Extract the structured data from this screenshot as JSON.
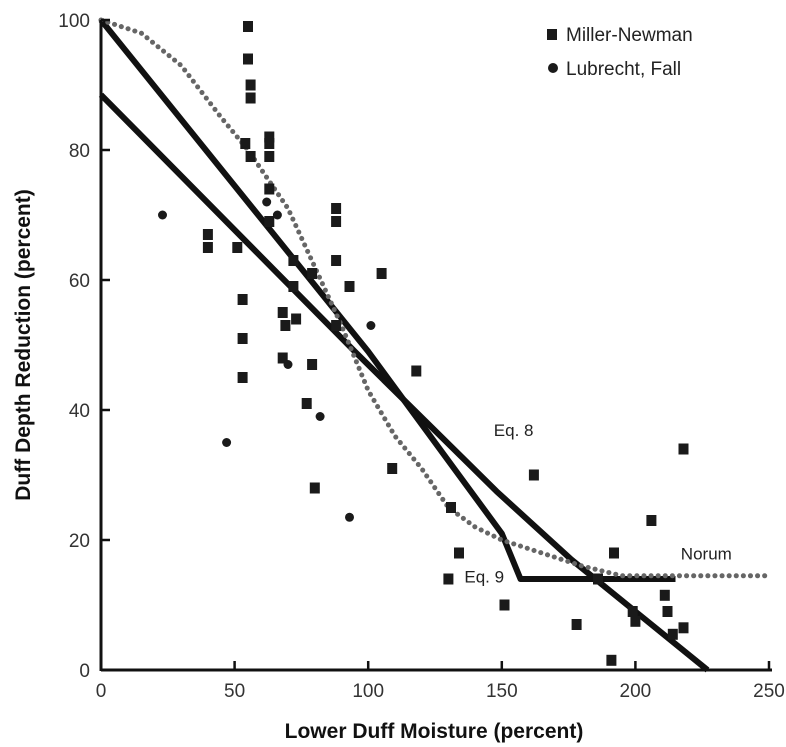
{
  "chart_data": {
    "type": "scatter",
    "xlabel": "Lower Duff Moisture (percent)",
    "ylabel": "Duff Depth Reduction (percent)",
    "xlim": [
      0,
      250
    ],
    "ylim": [
      0,
      100
    ],
    "xticks": [
      "0",
      "50",
      "100",
      "150",
      "200",
      "250"
    ],
    "yticks": [
      "0",
      "20",
      "40",
      "60",
      "80",
      "100"
    ],
    "grid": false,
    "legend_position": "top-right",
    "series": [
      {
        "name": "Miller-Newman",
        "marker": "square",
        "points": [
          [
            40,
            67
          ],
          [
            40,
            65
          ],
          [
            51,
            65
          ],
          [
            53,
            57
          ],
          [
            53,
            51
          ],
          [
            53,
            45
          ],
          [
            54,
            81
          ],
          [
            55,
            99
          ],
          [
            55,
            94
          ],
          [
            56,
            90
          ],
          [
            56,
            88
          ],
          [
            56,
            79
          ],
          [
            63,
            82
          ],
          [
            63,
            81
          ],
          [
            63,
            79
          ],
          [
            63,
            74
          ],
          [
            63,
            69
          ],
          [
            68,
            55
          ],
          [
            68,
            48
          ],
          [
            69,
            53
          ],
          [
            72,
            63
          ],
          [
            72,
            59
          ],
          [
            73,
            54
          ],
          [
            77,
            41
          ],
          [
            79,
            61
          ],
          [
            79,
            47
          ],
          [
            80,
            28
          ],
          [
            88,
            71
          ],
          [
            88,
            69
          ],
          [
            88,
            63
          ],
          [
            88,
            53
          ],
          [
            93,
            59
          ],
          [
            105,
            61
          ],
          [
            109,
            31
          ],
          [
            118,
            46
          ],
          [
            130,
            14
          ],
          [
            131,
            25
          ],
          [
            134,
            18
          ],
          [
            162,
            30
          ],
          [
            151,
            10
          ],
          [
            178,
            7
          ],
          [
            186,
            14
          ],
          [
            191,
            1.5
          ],
          [
            192,
            18
          ],
          [
            199,
            9
          ],
          [
            200,
            7.5
          ],
          [
            211,
            11.5
          ],
          [
            212,
            9
          ],
          [
            214,
            5.5
          ],
          [
            218,
            34
          ],
          [
            218,
            6.5
          ],
          [
            206,
            23
          ]
        ]
      },
      {
        "name": "Lubrecht, Fall",
        "marker": "circle",
        "points": [
          [
            23,
            70
          ],
          [
            47,
            35
          ],
          [
            62,
            72
          ],
          [
            66,
            70
          ],
          [
            70,
            47
          ],
          [
            82,
            39
          ],
          [
            93,
            23.5
          ],
          [
            101,
            53
          ]
        ]
      }
    ],
    "curves": [
      {
        "label": "Eq. 8",
        "style": "solid",
        "points": [
          [
            0,
            88.5
          ],
          [
            95,
            49
          ],
          [
            148,
            27.5
          ],
          [
            176,
            17
          ],
          [
            227,
            0
          ]
        ]
      },
      {
        "label": "Eq. 9",
        "style": "solid",
        "points": [
          [
            0,
            100
          ],
          [
            100,
            49
          ],
          [
            150,
            21
          ],
          [
            157,
            14
          ],
          [
            215,
            14
          ]
        ]
      },
      {
        "label": "Norum",
        "style": "dotted",
        "points": [
          [
            0,
            100
          ],
          [
            15,
            98
          ],
          [
            30,
            93
          ],
          [
            45,
            85
          ],
          [
            55,
            80
          ],
          [
            60,
            77
          ],
          [
            70,
            71
          ],
          [
            80,
            62
          ],
          [
            90,
            53
          ],
          [
            100,
            43
          ],
          [
            110,
            36
          ],
          [
            120,
            31
          ],
          [
            130,
            25
          ],
          [
            140,
            22
          ],
          [
            150,
            20
          ],
          [
            165,
            18
          ],
          [
            180,
            16
          ],
          [
            195,
            14.5
          ],
          [
            210,
            14.5
          ],
          [
            230,
            14.5
          ],
          [
            250,
            14.5
          ]
        ]
      }
    ],
    "annotations": [
      {
        "text": "Eq. 8",
        "x": 147,
        "y": 36
      },
      {
        "text": "Eq. 9",
        "x": 136,
        "y": 13.5
      },
      {
        "text": "Norum",
        "x": 217,
        "y": 17
      }
    ]
  }
}
